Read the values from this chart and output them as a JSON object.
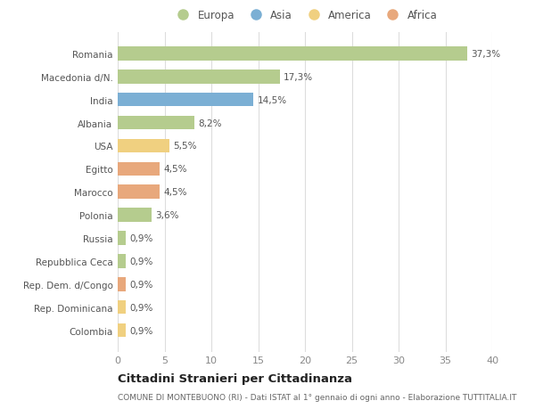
{
  "countries": [
    "Romania",
    "Macedonia d/N.",
    "India",
    "Albania",
    "USA",
    "Egitto",
    "Marocco",
    "Polonia",
    "Russia",
    "Repubblica Ceca",
    "Rep. Dem. d/Congo",
    "Rep. Dominicana",
    "Colombia"
  ],
  "values": [
    37.3,
    17.3,
    14.5,
    8.2,
    5.5,
    4.5,
    4.5,
    3.6,
    0.9,
    0.9,
    0.9,
    0.9,
    0.9
  ],
  "labels": [
    "37,3%",
    "17,3%",
    "14,5%",
    "8,2%",
    "5,5%",
    "4,5%",
    "4,5%",
    "3,6%",
    "0,9%",
    "0,9%",
    "0,9%",
    "0,9%",
    "0,9%"
  ],
  "colors": [
    "#b5cc8e",
    "#b5cc8e",
    "#7bafd4",
    "#b5cc8e",
    "#f0d080",
    "#e8a87c",
    "#e8a87c",
    "#b5cc8e",
    "#b5cc8e",
    "#b5cc8e",
    "#e8a87c",
    "#f0d080",
    "#f0d080"
  ],
  "legend_labels": [
    "Europa",
    "Asia",
    "America",
    "Africa"
  ],
  "legend_colors": [
    "#b5cc8e",
    "#7bafd4",
    "#f0d080",
    "#e8a87c"
  ],
  "title": "Cittadini Stranieri per Cittadinanza",
  "subtitle": "COMUNE DI MONTEBUONO (RI) - Dati ISTAT al 1° gennaio di ogni anno - Elaborazione TUTTITALIA.IT",
  "xlim": [
    0,
    40
  ],
  "xticks": [
    0,
    5,
    10,
    15,
    20,
    25,
    30,
    35,
    40
  ],
  "background_color": "#ffffff",
  "grid_color": "#dddddd",
  "bar_height": 0.6
}
